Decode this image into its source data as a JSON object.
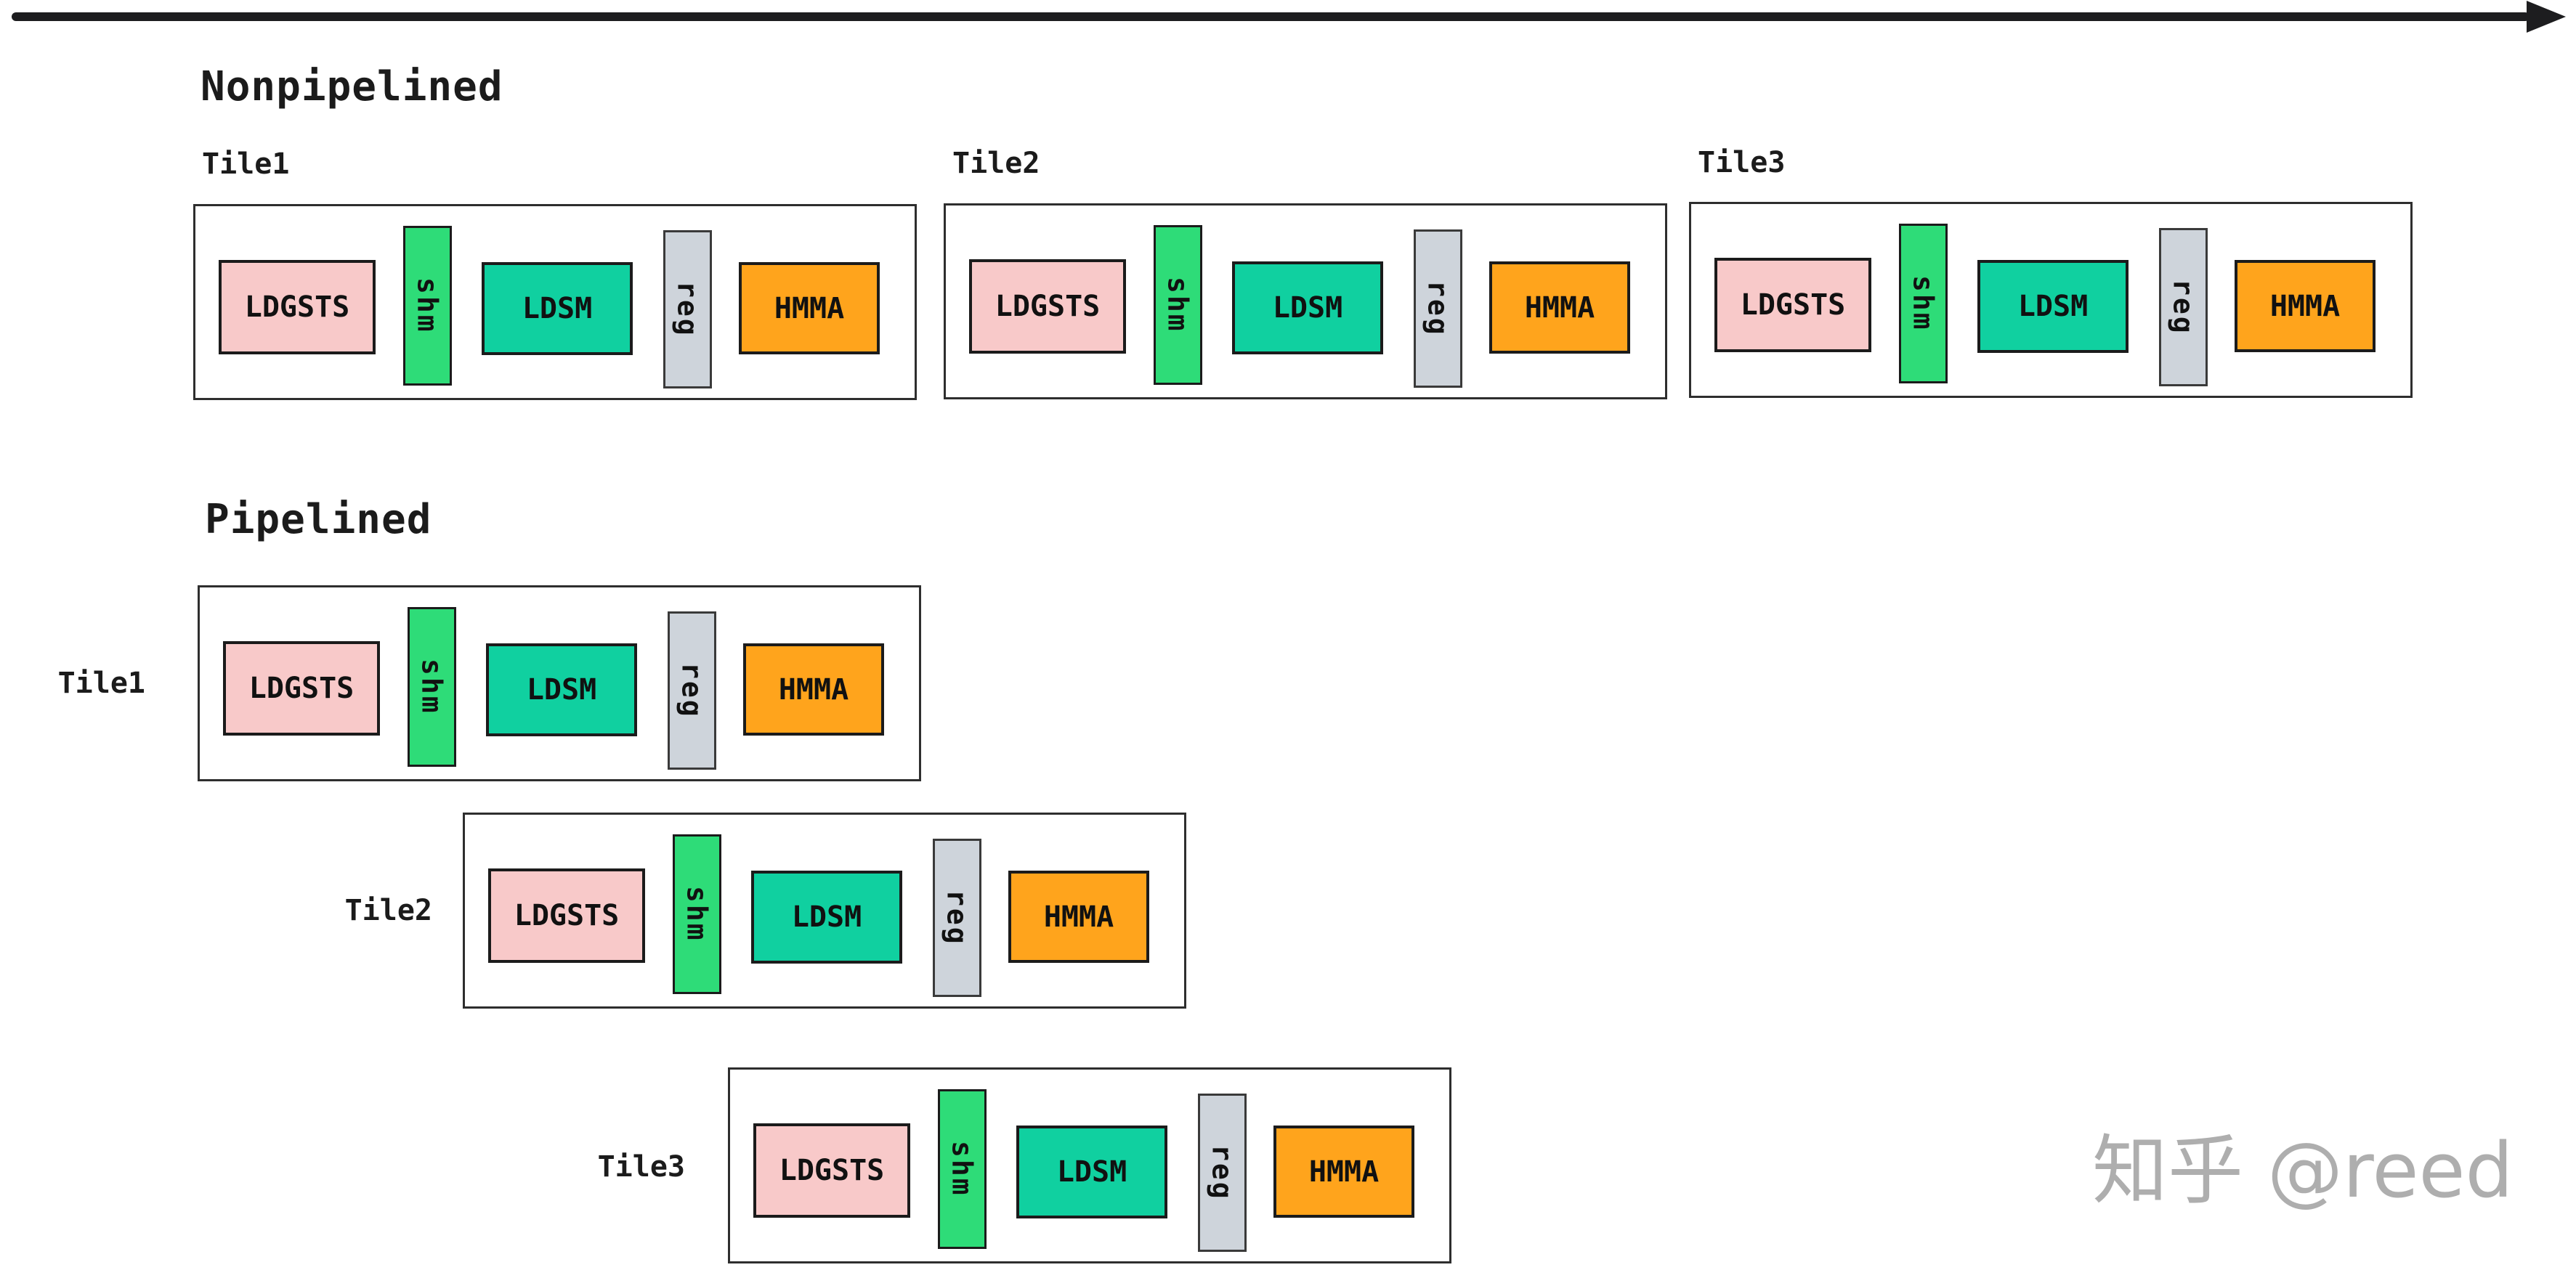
{
  "diagram": {
    "description_title_top": "Nonpipelined",
    "description_title_bottom": "Pipelined"
  },
  "sections": [
    {
      "title": "Nonpipelined",
      "tiles": [
        {
          "label": "Tile1"
        },
        {
          "label": "Tile2"
        },
        {
          "label": "Tile3"
        }
      ]
    },
    {
      "title": "Pipelined",
      "tiles": [
        {
          "label": "Tile1"
        },
        {
          "label": "Tile2"
        },
        {
          "label": "Tile3"
        }
      ]
    }
  ],
  "stages": {
    "ldgsts": "LDGSTS",
    "shm": "shm",
    "ldsm": "LDSM",
    "reg": "reg",
    "hmma": "HMMA"
  },
  "colors": {
    "ldgsts_fill": "#f8c9c9",
    "shm_fill": "#2edc78",
    "ldsm_fill": "#10d0a0",
    "reg_fill": "#ced4db",
    "hmma_fill": "#ffa41c",
    "stage_border": "#1b1b1b",
    "tile_border": "#2e2e2e",
    "arrow": "#1d1d1f",
    "watermark_gray": "#aeaeae"
  },
  "icons": {
    "timeline_arrow": "right-arrow-icon"
  },
  "watermark": {
    "text": "知乎 @reed"
  }
}
